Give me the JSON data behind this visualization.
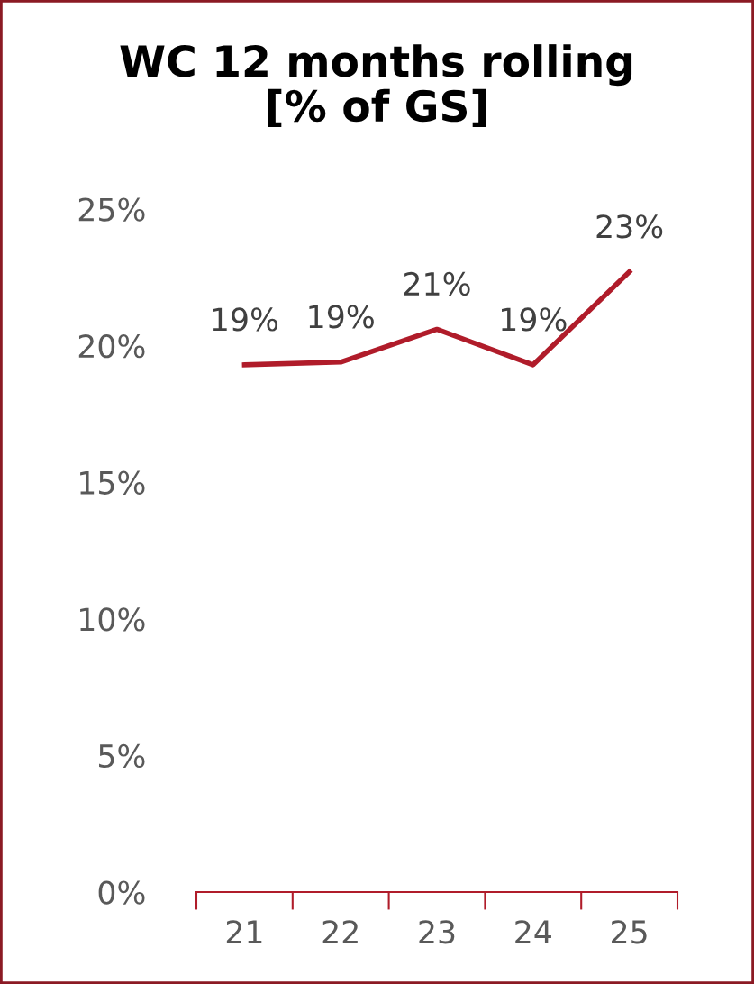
{
  "chart_data": {
    "type": "line",
    "title": "WC 12 months rolling\n[% of GS]",
    "categories": [
      "21",
      "22",
      "23",
      "24",
      "25"
    ],
    "series": [
      {
        "color": "#b01c2a",
        "values": [
          19.3,
          19.4,
          20.6,
          19.3,
          22.7
        ],
        "value_labels": [
          "19%",
          "19%",
          "21%",
          "19%",
          "23%"
        ]
      }
    ],
    "ylim": [
      0,
      25
    ],
    "yticks": [
      {
        "value": 0,
        "label": "0%"
      },
      {
        "value": 5,
        "label": "5%"
      },
      {
        "value": 10,
        "label": "10%"
      },
      {
        "value": 15,
        "label": "15%"
      },
      {
        "value": 20,
        "label": "20%"
      },
      {
        "value": 25,
        "label": "25%"
      }
    ],
    "grid": false,
    "legend": false,
    "marker": "none",
    "line_style": "solid"
  }
}
